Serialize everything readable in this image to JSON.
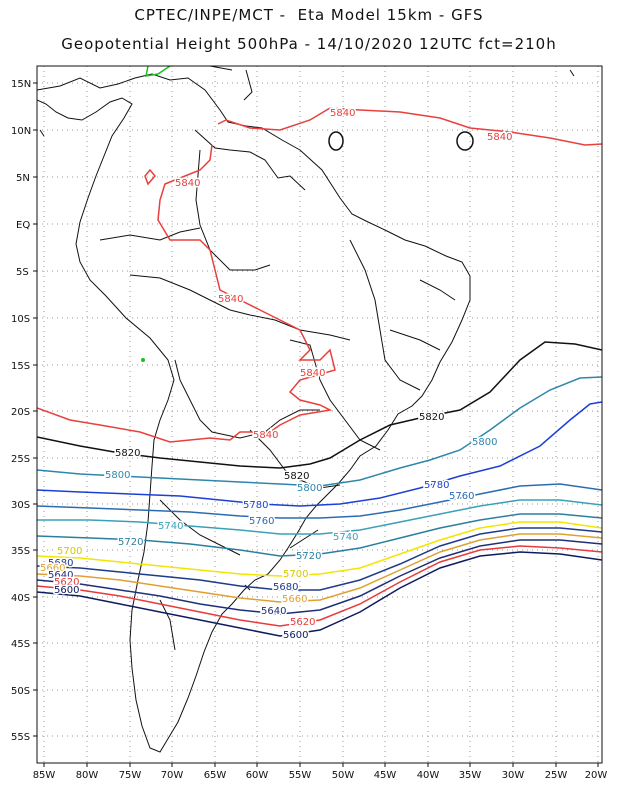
{
  "header": {
    "line1": "CPTEC/INPE/MCT -  Eta Model 15km - GFS",
    "line2": "Geopotential Height 500hPa - 14/10/2020 12UTC fct=210h"
  },
  "axes": {
    "lat_labels": [
      "15N",
      "10N",
      "5N",
      "EQ",
      "5S",
      "10S",
      "15S",
      "20S",
      "25S",
      "30S",
      "35S",
      "40S",
      "45S",
      "50S",
      "55S"
    ],
    "lon_labels": [
      "85W",
      "80W",
      "75W",
      "70W",
      "65W",
      "60W",
      "55W",
      "50W",
      "45W",
      "40W",
      "35W",
      "30W",
      "25W",
      "20W"
    ]
  },
  "contours": {
    "levels": [
      {
        "value": "5840",
        "color": "#e8403c"
      },
      {
        "value": "5820",
        "color": "#111111"
      },
      {
        "value": "5800",
        "color": "#2e86ab"
      },
      {
        "value": "5780",
        "color": "#1c3fd6"
      },
      {
        "value": "5760",
        "color": "#2b6cb0"
      },
      {
        "value": "5740",
        "color": "#3aa0b8"
      },
      {
        "value": "5720",
        "color": "#2a7fa0"
      },
      {
        "value": "5700",
        "color": "#f2e600"
      },
      {
        "value": "5680",
        "color": "#1e3a8a"
      },
      {
        "value": "5660",
        "color": "#e0a030"
      },
      {
        "value": "5640",
        "color": "#1e2f7a"
      },
      {
        "value": "5620",
        "color": "#e83a3a"
      },
      {
        "value": "5600",
        "color": "#0d1b5e"
      }
    ],
    "labels": {
      "l5840a": "5840",
      "l5840b": "5840",
      "l5840c": "5840",
      "l5840d": "5840",
      "l5840e": "5840",
      "l5840f": "5840",
      "l5820a": "5820",
      "l5820b": "5820",
      "l5820c": "5820",
      "l5800a": "5800",
      "l5800b": "5800",
      "l5800c": "5800",
      "l5780a": "5780",
      "l5780b": "5780",
      "l5760a": "5760",
      "l5760b": "5760",
      "l5740a": "5740",
      "l5740b": "5740",
      "l5720a": "5720",
      "l5720b": "5720",
      "l5700a": "5700",
      "l5700b": "5700",
      "l5680a": "5680",
      "l5680b": "5680",
      "l5660a": "5660",
      "l5660b": "5660",
      "l5640a": "5640",
      "l5640b": "5640",
      "l5620a": "5620",
      "l5620b": "5620",
      "l5600a": "5600",
      "l5600b": "5600"
    }
  }
}
